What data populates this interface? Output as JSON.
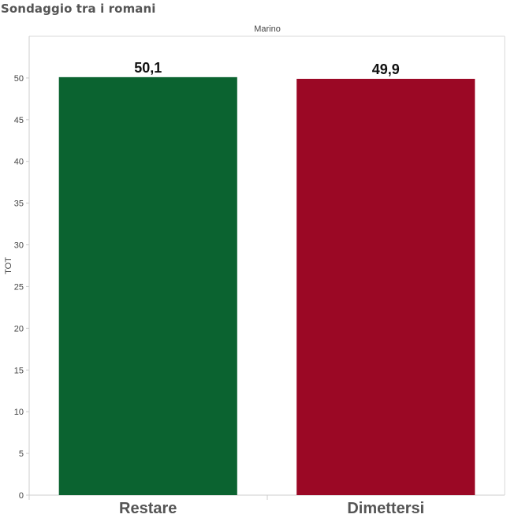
{
  "title": "Sondaggio tra i romani",
  "chart_data": {
    "type": "bar",
    "panel_label": "Marino",
    "categories": [
      "Restare",
      "Dimettersi"
    ],
    "values": [
      50.1,
      49.9
    ],
    "value_labels": [
      "50,1",
      "49,9"
    ],
    "colors": [
      "#0b6330",
      "#9b0825"
    ],
    "ylabel": "TOT",
    "xlabel": "",
    "ylim": [
      0,
      55
    ],
    "yticks": [
      0,
      5,
      10,
      15,
      20,
      25,
      30,
      35,
      40,
      45,
      50
    ],
    "grid": false,
    "legend": "none"
  }
}
